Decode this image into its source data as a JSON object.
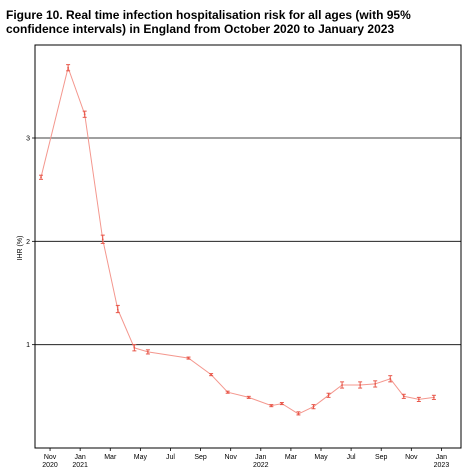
{
  "chart_data": {
    "type": "line",
    "title": "Figure 10. Real time infection hospitalisation risk for all ages (with 95% confidence intervals) in England from October 2020 to January 2023",
    "ylabel": "IHR (%)",
    "xlabel": "",
    "ylim": [
      0,
      3.9
    ],
    "xlim": [
      0,
      28.3
    ],
    "grid": "horizontal",
    "line_color": "#f4978e",
    "yticks": [
      {
        "value": 1,
        "label": "1"
      },
      {
        "value": 2,
        "label": "2"
      },
      {
        "value": 3,
        "label": "3"
      }
    ],
    "xticks": [
      {
        "pos": 1,
        "label": "Nov",
        "year": "2020"
      },
      {
        "pos": 3,
        "label": "Jan",
        "year": "2021"
      },
      {
        "pos": 5,
        "label": "Mar",
        "year": ""
      },
      {
        "pos": 7,
        "label": "May",
        "year": ""
      },
      {
        "pos": 9,
        "label": "Jul",
        "year": ""
      },
      {
        "pos": 11,
        "label": "Sep",
        "year": ""
      },
      {
        "pos": 13,
        "label": "Nov",
        "year": ""
      },
      {
        "pos": 15,
        "label": "Jan",
        "year": "2022"
      },
      {
        "pos": 17,
        "label": "Mar",
        "year": ""
      },
      {
        "pos": 19,
        "label": "May",
        "year": ""
      },
      {
        "pos": 21,
        "label": "Jul",
        "year": ""
      },
      {
        "pos": 23,
        "label": "Sep",
        "year": ""
      },
      {
        "pos": 25,
        "label": "Nov",
        "year": ""
      },
      {
        "pos": 27,
        "label": "Jan",
        "year": "2023"
      }
    ],
    "points": [
      {
        "x": 0.4,
        "y": 2.62,
        "lo": 2.6,
        "hi": 2.64
      },
      {
        "x": 2.2,
        "y": 3.68,
        "lo": 3.65,
        "hi": 3.71
      },
      {
        "x": 3.3,
        "y": 3.23,
        "lo": 3.2,
        "hi": 3.26
      },
      {
        "x": 4.5,
        "y": 2.02,
        "lo": 1.98,
        "hi": 2.06
      },
      {
        "x": 5.5,
        "y": 1.34,
        "lo": 1.31,
        "hi": 1.38
      },
      {
        "x": 6.6,
        "y": 0.97,
        "lo": 0.94,
        "hi": 1.0
      },
      {
        "x": 7.5,
        "y": 0.93,
        "lo": 0.91,
        "hi": 0.95
      },
      {
        "x": 10.2,
        "y": 0.87,
        "lo": 0.86,
        "hi": 0.88
      },
      {
        "x": 11.7,
        "y": 0.71,
        "lo": 0.7,
        "hi": 0.72
      },
      {
        "x": 12.8,
        "y": 0.54,
        "lo": 0.53,
        "hi": 0.55
      },
      {
        "x": 14.2,
        "y": 0.49,
        "lo": 0.48,
        "hi": 0.5
      },
      {
        "x": 15.7,
        "y": 0.41,
        "lo": 0.4,
        "hi": 0.42
      },
      {
        "x": 16.4,
        "y": 0.43,
        "lo": 0.42,
        "hi": 0.44
      },
      {
        "x": 17.5,
        "y": 0.33,
        "lo": 0.32,
        "hi": 0.35
      },
      {
        "x": 18.5,
        "y": 0.4,
        "lo": 0.38,
        "hi": 0.42
      },
      {
        "x": 19.5,
        "y": 0.51,
        "lo": 0.49,
        "hi": 0.53
      },
      {
        "x": 20.4,
        "y": 0.61,
        "lo": 0.58,
        "hi": 0.64
      },
      {
        "x": 21.6,
        "y": 0.61,
        "lo": 0.58,
        "hi": 0.64
      },
      {
        "x": 22.6,
        "y": 0.62,
        "lo": 0.59,
        "hi": 0.65
      },
      {
        "x": 23.6,
        "y": 0.67,
        "lo": 0.64,
        "hi": 0.7
      },
      {
        "x": 24.5,
        "y": 0.5,
        "lo": 0.48,
        "hi": 0.52
      },
      {
        "x": 25.5,
        "y": 0.47,
        "lo": 0.45,
        "hi": 0.49
      },
      {
        "x": 26.5,
        "y": 0.49,
        "lo": 0.47,
        "hi": 0.51
      }
    ]
  }
}
